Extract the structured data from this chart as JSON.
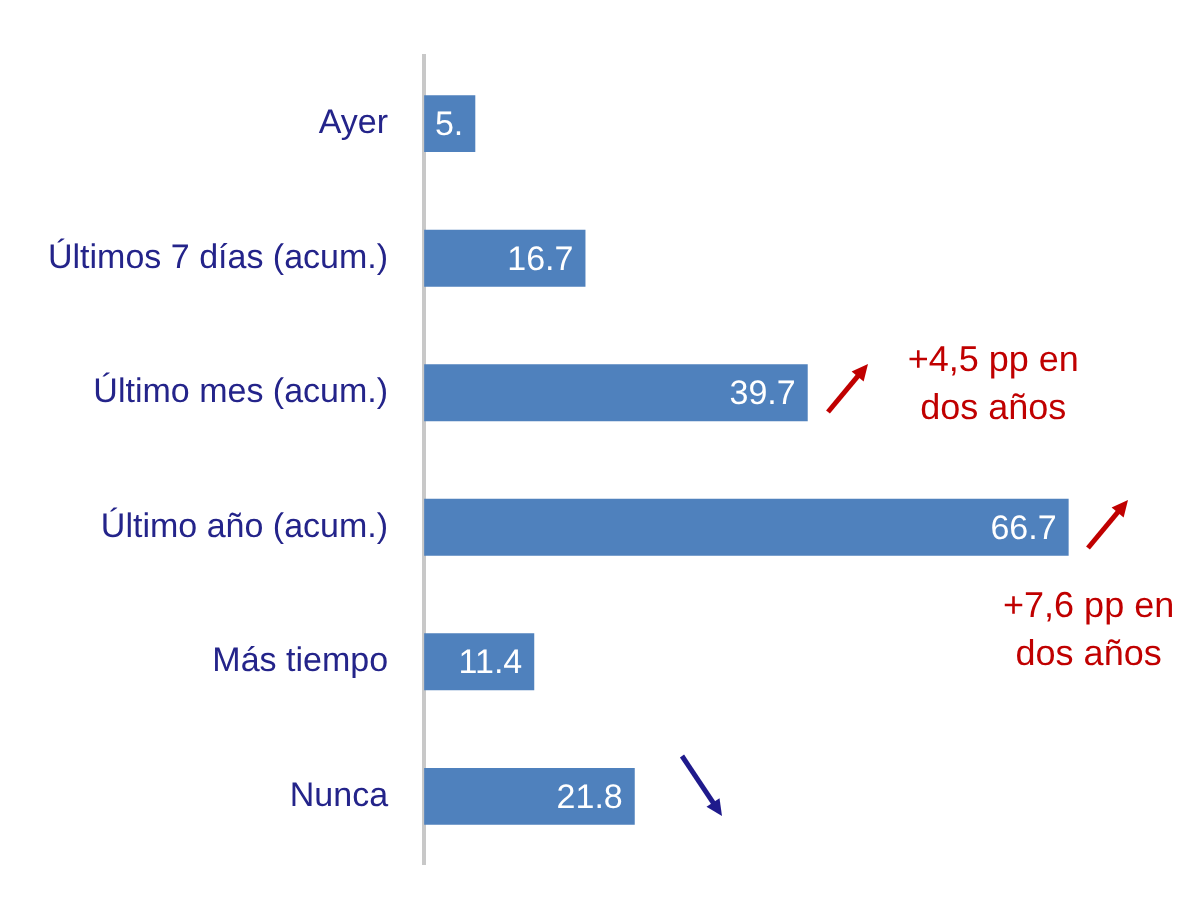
{
  "chart_data": {
    "type": "bar",
    "orientation": "horizontal",
    "categories": [
      "Ayer",
      "Últimos 7 días (acum.)",
      "Último mes (acum.)",
      "Último año (acum.)",
      "Más tiempo",
      "Nunca"
    ],
    "values": [
      5.3,
      16.7,
      39.7,
      66.7,
      11.4,
      21.8
    ],
    "value_labels": [
      "5.",
      "16.7",
      "39.7",
      "66.7",
      "11.4",
      "21.8"
    ],
    "color": "#4f81bd",
    "annotations": [
      {
        "text": "+4,5 pp en dos años",
        "x": 39.7,
        "y": "Último mes (acum.)"
      },
      {
        "text": "+7,6 pp en dos años",
        "x": 66.7,
        "y": "Último año (acum.)"
      }
    ],
    "legend": false
  }
}
